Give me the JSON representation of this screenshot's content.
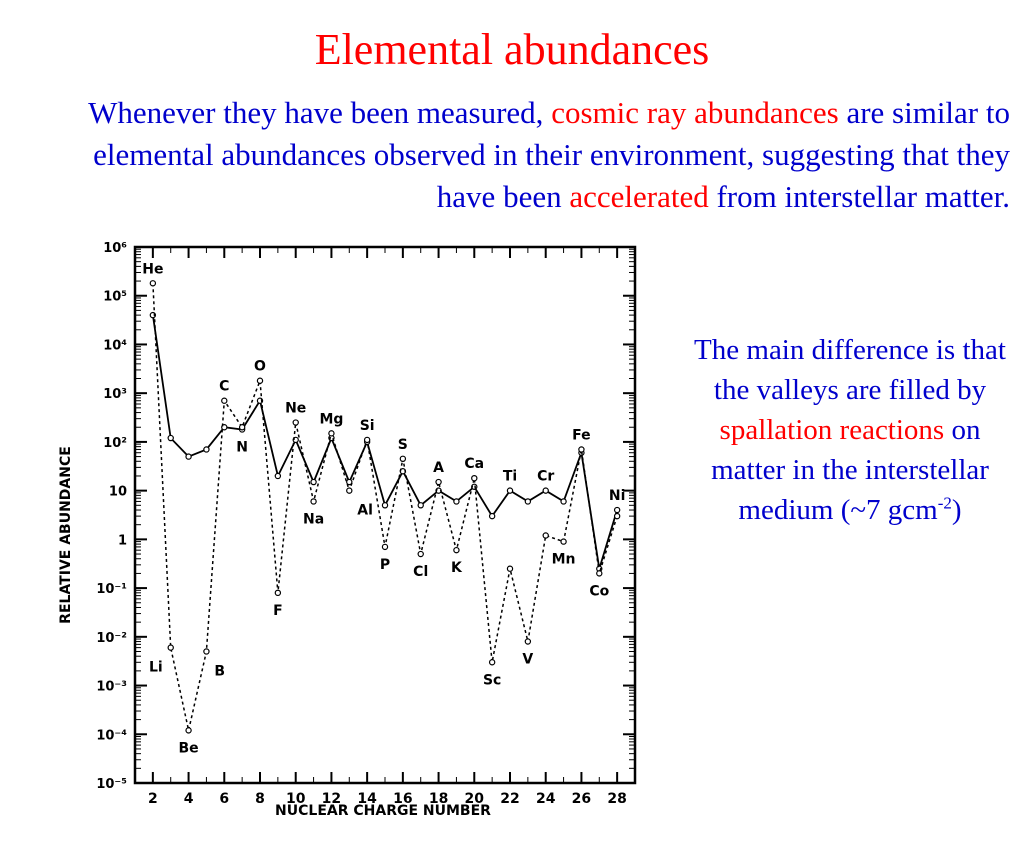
{
  "slide": {
    "title": "Elemental abundances",
    "intro": {
      "p1": "Whenever they have been measured, ",
      "r1": "cosmic ray abundances",
      "p2": " are similar to elemental abundances observed in their environment, suggesting that they have been ",
      "r2": "accelerated",
      "p3": " from interstellar matter."
    },
    "side": {
      "p1": "The main difference is that the valleys are filled by ",
      "r1": "spallation reactions",
      "p2": " on matter in the interstellar medium (~7 gcm",
      "sup": "-2",
      "p3": ")"
    }
  },
  "colors": {
    "title": "#ff0000",
    "body": "#0000cc",
    "highlight": "#ff0000"
  },
  "chart_data": {
    "type": "line",
    "xlabel": "NUCLEAR CHARGE NUMBER",
    "ylabel": "RELATIVE ABUNDANCE",
    "log_y": true,
    "xlim": [
      1,
      29
    ],
    "ylim_exp": [
      -5,
      6
    ],
    "x_ticks": [
      2,
      4,
      6,
      8,
      10,
      12,
      14,
      16,
      18,
      20,
      22,
      24,
      26,
      28
    ],
    "y_tick_labels": [
      "10⁻⁵",
      "10⁻⁴",
      "10⁻³",
      "10⁻²",
      "10⁻¹",
      "1",
      "10",
      "10²",
      "10³",
      "10⁴",
      "10⁵",
      "10⁶"
    ],
    "y_tick_exps": [
      -5,
      -4,
      -3,
      -2,
      -1,
      0,
      1,
      2,
      3,
      4,
      5,
      6
    ],
    "series": [
      {
        "style": "solid",
        "points": [
          [
            2,
            40000
          ],
          [
            3,
            120
          ],
          [
            4,
            50
          ],
          [
            5,
            70
          ],
          [
            6,
            200
          ],
          [
            7,
            180
          ],
          [
            8,
            700
          ],
          [
            9,
            20
          ],
          [
            10,
            110
          ],
          [
            11,
            15
          ],
          [
            12,
            120
          ],
          [
            13,
            15
          ],
          [
            14,
            100
          ],
          [
            15,
            5
          ],
          [
            16,
            25
          ],
          [
            17,
            5
          ],
          [
            18,
            10
          ],
          [
            19,
            6
          ],
          [
            20,
            12
          ],
          [
            21,
            3
          ],
          [
            22,
            10
          ],
          [
            23,
            6
          ],
          [
            24,
            10
          ],
          [
            25,
            6
          ],
          [
            26,
            60
          ],
          [
            27,
            0.25
          ],
          [
            28,
            4
          ]
        ]
      },
      {
        "style": "dashed",
        "points": [
          [
            2,
            180000
          ],
          [
            3,
            0.006
          ],
          [
            4,
            0.00012
          ],
          [
            5,
            0.005
          ],
          [
            6,
            700
          ],
          [
            7,
            200
          ],
          [
            8,
            1800
          ],
          [
            9,
            0.08
          ],
          [
            10,
            250
          ],
          [
            11,
            6
          ],
          [
            12,
            150
          ],
          [
            13,
            10
          ],
          [
            14,
            110
          ],
          [
            15,
            0.7
          ],
          [
            16,
            45
          ],
          [
            17,
            0.5
          ],
          [
            18,
            15
          ],
          [
            19,
            0.6
          ],
          [
            20,
            18
          ],
          [
            21,
            0.003
          ],
          [
            22,
            0.25
          ],
          [
            23,
            0.008
          ],
          [
            24,
            1.2
          ],
          [
            25,
            0.9
          ],
          [
            26,
            70
          ],
          [
            27,
            0.2
          ],
          [
            28,
            3
          ]
        ]
      }
    ],
    "element_labels": [
      {
        "text": "He",
        "x": 2,
        "y": 180000,
        "pos": "above"
      },
      {
        "text": "Li",
        "x": 3,
        "y": 0.006,
        "pos": "below-left"
      },
      {
        "text": "Be",
        "x": 4,
        "y": 0.00012,
        "pos": "below"
      },
      {
        "text": "B",
        "x": 5,
        "y": 0.005,
        "pos": "below-right"
      },
      {
        "text": "C",
        "x": 6,
        "y": 700,
        "pos": "above"
      },
      {
        "text": "N",
        "x": 7,
        "y": 180,
        "pos": "below"
      },
      {
        "text": "O",
        "x": 8,
        "y": 1800,
        "pos": "above"
      },
      {
        "text": "F",
        "x": 9,
        "y": 0.08,
        "pos": "below"
      },
      {
        "text": "Ne",
        "x": 10,
        "y": 250,
        "pos": "above"
      },
      {
        "text": "Na",
        "x": 11,
        "y": 6,
        "pos": "below"
      },
      {
        "text": "Mg",
        "x": 12,
        "y": 150,
        "pos": "above"
      },
      {
        "text": "Al",
        "x": 13,
        "y": 10,
        "pos": "below-right"
      },
      {
        "text": "Si",
        "x": 14,
        "y": 110,
        "pos": "above"
      },
      {
        "text": "P",
        "x": 15,
        "y": 0.7,
        "pos": "below"
      },
      {
        "text": "S",
        "x": 16,
        "y": 45,
        "pos": "above"
      },
      {
        "text": "Cl",
        "x": 17,
        "y": 0.5,
        "pos": "below"
      },
      {
        "text": "A",
        "x": 18,
        "y": 15,
        "pos": "above"
      },
      {
        "text": "K",
        "x": 19,
        "y": 0.6,
        "pos": "below"
      },
      {
        "text": "Ca",
        "x": 20,
        "y": 18,
        "pos": "above"
      },
      {
        "text": "Sc",
        "x": 21,
        "y": 0.003,
        "pos": "below"
      },
      {
        "text": "Ti",
        "x": 22,
        "y": 10,
        "pos": "above"
      },
      {
        "text": "V",
        "x": 23,
        "y": 0.008,
        "pos": "below"
      },
      {
        "text": "Cr",
        "x": 24,
        "y": 10,
        "pos": "above"
      },
      {
        "text": "Mn",
        "x": 25,
        "y": 0.9,
        "pos": "below"
      },
      {
        "text": "Fe",
        "x": 26,
        "y": 70,
        "pos": "above"
      },
      {
        "text": "Co",
        "x": 27,
        "y": 0.2,
        "pos": "below"
      },
      {
        "text": "Ni",
        "x": 28,
        "y": 4,
        "pos": "above"
      }
    ]
  }
}
